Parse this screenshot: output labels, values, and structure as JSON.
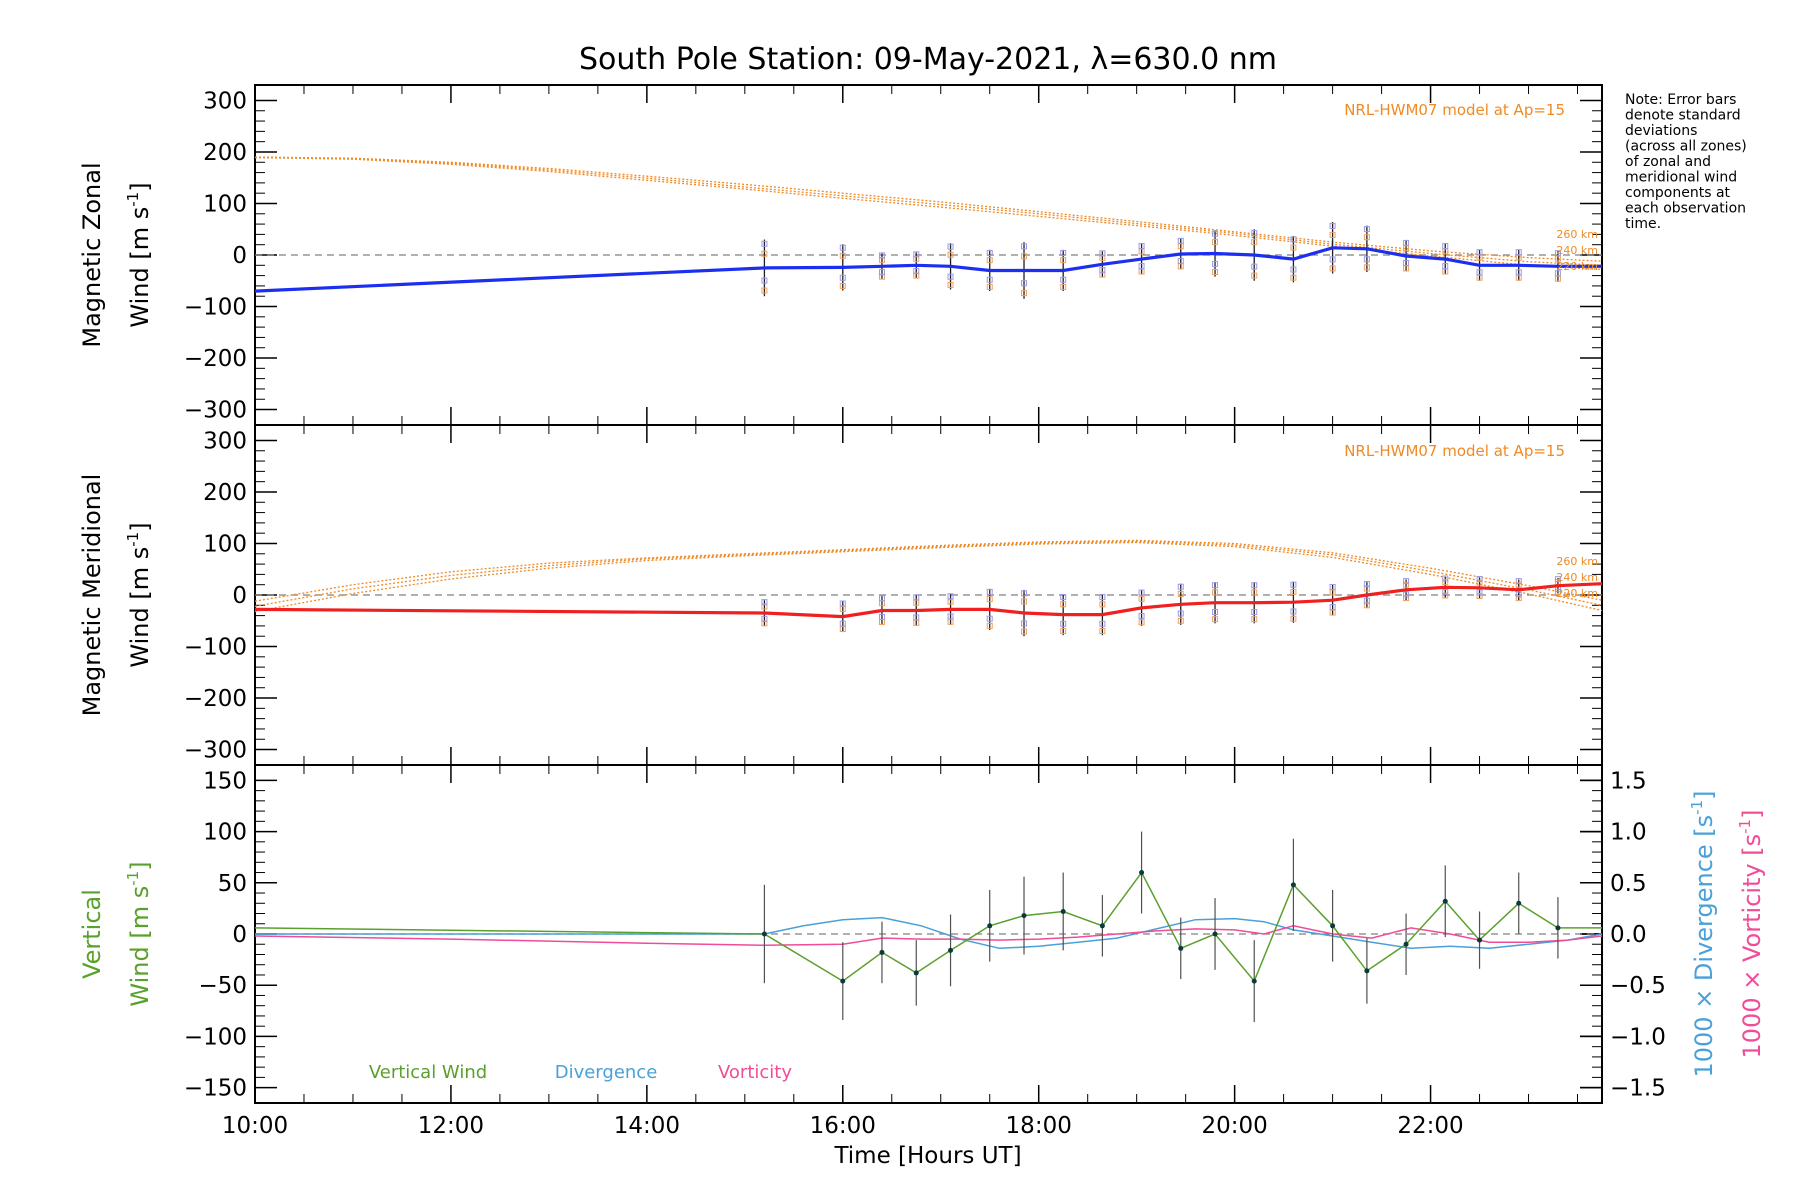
{
  "title": "South Pole Station: 09-May-2021, λ=630.0 nm",
  "note_lines": [
    "Note: Error bars",
    "denote standard",
    "deviations",
    "(across all zones)",
    "of zonal and",
    "meridional wind",
    "components at",
    "each observation",
    "time."
  ],
  "colors": {
    "zonal": "#1c2ff0",
    "meridional": "#f02020",
    "model": "#f08a24",
    "vertical": "#5aa02c",
    "divergence": "#4aa0d8",
    "vorticity": "#f04c98",
    "zero_line": "#808080",
    "error_bar": "#202020"
  },
  "x_axis": {
    "label": "Time [Hours UT]",
    "range": [
      10.0,
      23.75
    ],
    "ticks": [
      10,
      12,
      14,
      16,
      18,
      20,
      22
    ],
    "tick_labels": [
      "10:00",
      "12:00",
      "14:00",
      "16:00",
      "18:00",
      "20:00",
      "22:00"
    ]
  },
  "chart_data": [
    {
      "type": "line",
      "id": "zonal",
      "ylabel_line1": "Magnetic Zonal",
      "ylabel_wind": "Wind",
      "ylabel_units": "[m s",
      "ylabel_sup": "-1",
      "ylabel_close": "]",
      "ylim": [
        -330,
        330
      ],
      "yticks": [
        -300,
        -200,
        -100,
        0,
        100,
        200,
        300
      ],
      "ytick_labels": [
        "−300",
        "−200",
        "−100",
        "0",
        "100",
        "200",
        "300"
      ],
      "model_label": "NRL-HWM07 model at Ap=15",
      "altitude_labels": [
        "260 km",
        "240 km",
        "220 km"
      ],
      "series": [
        {
          "name": "Magnetic Zonal Wind",
          "x": [
            10.0,
            15.2,
            16.0,
            16.4,
            16.75,
            17.1,
            17.5,
            17.85,
            18.25,
            18.65,
            19.05,
            19.45,
            19.8,
            20.2,
            20.6,
            21.0,
            21.35,
            21.75,
            22.15,
            22.5,
            22.9,
            23.3,
            23.75
          ],
          "values": [
            -70,
            -25,
            -24,
            -22,
            -20,
            -22,
            -30,
            -30,
            -30,
            -18,
            -8,
            2,
            3,
            0,
            -8,
            14,
            12,
            -2,
            -8,
            -20,
            -20,
            -22,
            -22
          ],
          "errors": [
            0,
            55,
            45,
            25,
            25,
            45,
            40,
            55,
            40,
            25,
            30,
            30,
            45,
            50,
            45,
            50,
            45,
            30,
            30,
            30,
            30,
            30,
            0
          ]
        },
        {
          "name": "NRL-HWM07 260 km",
          "x": [
            10,
            11,
            12,
            13,
            14,
            15,
            16,
            17,
            18,
            19,
            20,
            21,
            22,
            23,
            23.75
          ],
          "values": [
            190,
            188,
            180,
            168,
            153,
            137,
            120,
            103,
            84,
            65,
            45,
            25,
            8,
            -5,
            -12
          ]
        },
        {
          "name": "NRL-HWM07 240 km",
          "x": [
            10,
            11,
            12,
            13,
            14,
            15,
            16,
            17,
            18,
            19,
            20,
            21,
            22,
            23,
            23.75
          ],
          "values": [
            190,
            187,
            178,
            165,
            149,
            132,
            115,
            98,
            80,
            61,
            42,
            21,
            3,
            -13,
            -20
          ]
        },
        {
          "name": "NRL-HWM07 220 km",
          "x": [
            10,
            11,
            12,
            13,
            14,
            15,
            16,
            17,
            18,
            19,
            20,
            21,
            22,
            23,
            23.75
          ],
          "values": [
            189,
            186,
            176,
            162,
            145,
            128,
            110,
            93,
            75,
            57,
            38,
            17,
            -2,
            -20,
            -28
          ]
        }
      ]
    },
    {
      "type": "line",
      "id": "meridional",
      "ylabel_line1": "Magnetic Meridional",
      "ylabel_wind": "Wind",
      "ylabel_units": "[m s",
      "ylabel_sup": "-1",
      "ylabel_close": "]",
      "ylim": [
        -330,
        330
      ],
      "yticks": [
        -300,
        -200,
        -100,
        0,
        100,
        200,
        300
      ],
      "ytick_labels": [
        "−300",
        "−200",
        "−100",
        "0",
        "100",
        "200",
        "300"
      ],
      "model_label": "NRL-HWM07 model at Ap=15",
      "altitude_labels": [
        "260 km",
        "240 km",
        "220 km"
      ],
      "series": [
        {
          "name": "Magnetic Meridional Wind",
          "x": [
            10.0,
            15.2,
            16.0,
            16.4,
            16.75,
            17.1,
            17.5,
            17.85,
            18.25,
            18.65,
            19.05,
            19.45,
            19.8,
            20.2,
            20.6,
            21.0,
            21.35,
            21.75,
            22.15,
            22.5,
            22.9,
            23.3,
            23.75
          ],
          "values": [
            -28,
            -35,
            -42,
            -30,
            -30,
            -28,
            -28,
            -35,
            -38,
            -38,
            -25,
            -18,
            -15,
            -15,
            -14,
            -10,
            0,
            10,
            15,
            14,
            10,
            18,
            22
          ],
          "errors": [
            0,
            25,
            30,
            28,
            30,
            30,
            40,
            45,
            40,
            40,
            35,
            40,
            40,
            40,
            40,
            30,
            25,
            20,
            20,
            20,
            20,
            15,
            0
          ]
        },
        {
          "name": "NRL-HWM07 260 km",
          "x": [
            10,
            11,
            12,
            13,
            14,
            15,
            16,
            17,
            18,
            19,
            20,
            21,
            22,
            23,
            23.75
          ],
          "values": [
            -12,
            20,
            45,
            62,
            72,
            80,
            88,
            96,
            103,
            106,
            100,
            82,
            52,
            18,
            -10
          ]
        },
        {
          "name": "NRL-HWM07 240 km",
          "x": [
            10,
            11,
            12,
            13,
            14,
            15,
            16,
            17,
            18,
            19,
            20,
            21,
            22,
            23,
            23.75
          ],
          "values": [
            -22,
            12,
            38,
            57,
            70,
            78,
            86,
            94,
            101,
            104,
            97,
            78,
            46,
            10,
            -20
          ]
        },
        {
          "name": "NRL-HWM07 220 km",
          "x": [
            10,
            11,
            12,
            13,
            14,
            15,
            16,
            17,
            18,
            19,
            20,
            21,
            22,
            23,
            23.75
          ],
          "values": [
            -32,
            3,
            31,
            52,
            67,
            76,
            84,
            92,
            99,
            102,
            94,
            73,
            40,
            2,
            -30
          ]
        }
      ]
    },
    {
      "type": "line",
      "id": "vertical",
      "ylabel_left1": "Vertical",
      "ylabel_left_wind": "Wind",
      "ylabel_left_units": "[m s",
      "ylabel_left_sup": "-1",
      "ylabel_left_close": "]",
      "ylabel_right_div": "1000 × Divergence",
      "ylabel_right_vort": "1000 × Vorticity",
      "ylabel_right_units": "[s",
      "ylabel_right_sup": "-1",
      "ylabel_right_close": "]",
      "ylim": [
        -165,
        165
      ],
      "yticks": [
        -150,
        -100,
        -50,
        0,
        50,
        100,
        150
      ],
      "ytick_labels": [
        "−150",
        "−100",
        "−50",
        "0",
        "50",
        "100",
        "150"
      ],
      "ylim_right": [
        -1.65,
        1.65
      ],
      "yticks_right": [
        -1.5,
        -1.0,
        -0.5,
        0.0,
        0.5,
        1.0,
        1.5
      ],
      "ytick_labels_right": [
        "−1.5",
        "−1.0",
        "−0.5",
        "0.0",
        "0.5",
        "1.0",
        "1.5"
      ],
      "legend": [
        "Vertical Wind",
        "Divergence",
        "Vorticity"
      ],
      "series": [
        {
          "name": "Vertical Wind",
          "x": [
            10.0,
            15.2,
            16.0,
            16.4,
            16.75,
            17.1,
            17.5,
            17.85,
            18.25,
            18.65,
            19.05,
            19.45,
            19.8,
            20.2,
            20.6,
            21.0,
            21.35,
            21.75,
            22.15,
            22.5,
            22.9,
            23.3,
            23.75
          ],
          "values": [
            6,
            0,
            -46,
            -18,
            -38,
            -16,
            8,
            18,
            22,
            8,
            60,
            -14,
            0,
            -46,
            48,
            8,
            -36,
            -10,
            32,
            -6,
            30,
            6,
            6
          ],
          "errors": [
            0,
            48,
            38,
            30,
            32,
            35,
            35,
            38,
            38,
            30,
            40,
            30,
            35,
            40,
            45,
            35,
            32,
            30,
            35,
            28,
            30,
            30,
            0
          ]
        },
        {
          "name": "Divergence",
          "x": [
            10,
            12,
            14,
            15.2,
            15.6,
            16.0,
            16.4,
            16.8,
            17.2,
            17.6,
            18.0,
            18.4,
            18.8,
            19.2,
            19.6,
            20.0,
            20.3,
            20.6,
            21.0,
            21.4,
            21.8,
            22.2,
            22.6,
            23.0,
            23.4,
            23.75
          ],
          "values": [
            0.0,
            0.0,
            0.0,
            0.0,
            0.08,
            0.14,
            0.16,
            0.08,
            -0.05,
            -0.14,
            -0.12,
            -0.08,
            -0.04,
            0.05,
            0.14,
            0.15,
            0.12,
            0.04,
            -0.02,
            -0.08,
            -0.14,
            -0.12,
            -0.14,
            -0.1,
            -0.06,
            0.0
          ]
        },
        {
          "name": "Vorticity",
          "x": [
            10,
            12,
            14,
            15.2,
            16.0,
            16.4,
            16.8,
            17.2,
            17.6,
            18.0,
            18.4,
            18.8,
            19.2,
            19.6,
            20.0,
            20.3,
            20.6,
            21.0,
            21.4,
            21.8,
            22.2,
            22.6,
            23.0,
            23.4,
            23.75
          ],
          "values": [
            -0.02,
            -0.05,
            -0.09,
            -0.11,
            -0.1,
            -0.04,
            -0.05,
            -0.05,
            -0.06,
            -0.05,
            -0.03,
            0.0,
            0.03,
            0.05,
            0.04,
            0.0,
            0.08,
            0.0,
            -0.04,
            0.06,
            0.0,
            -0.08,
            -0.08,
            -0.06,
            -0.02
          ]
        }
      ]
    }
  ]
}
